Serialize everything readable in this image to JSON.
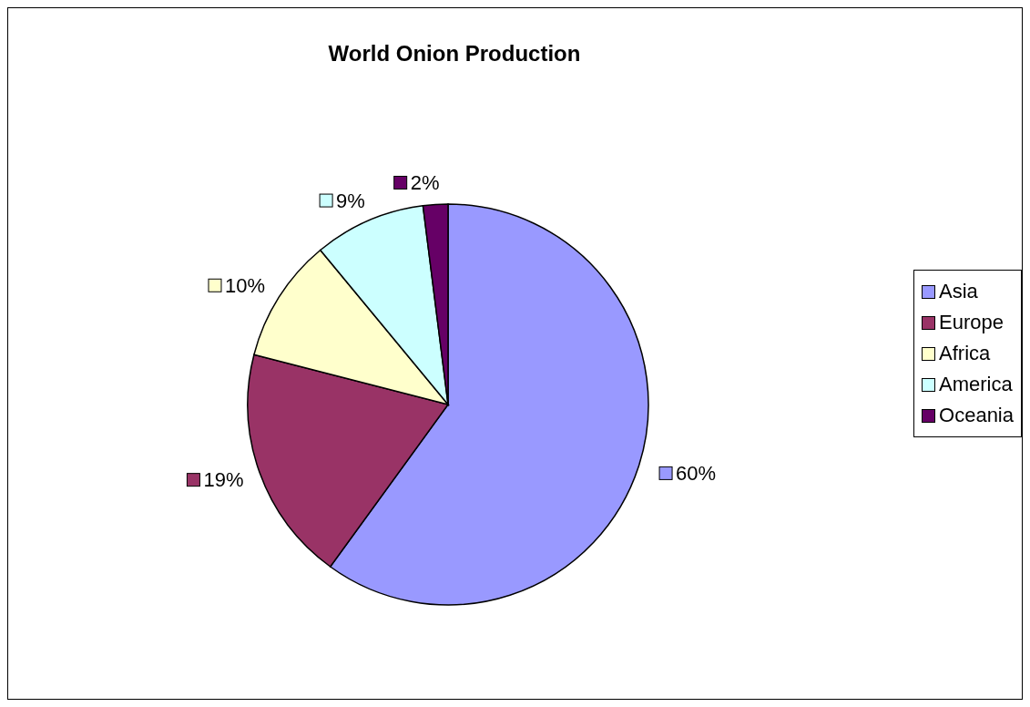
{
  "chart_data": {
    "type": "pie",
    "title": "World Onion Production",
    "categories": [
      "Asia",
      "Europe",
      "Africa",
      "America",
      "Oceania"
    ],
    "values": [
      60,
      19,
      10,
      9,
      2
    ],
    "colors": [
      "#9999ff",
      "#993366",
      "#ffffcc",
      "#ccffff",
      "#660066"
    ],
    "value_labels": [
      "60%",
      "19%",
      "10%",
      "9%",
      "2%"
    ],
    "legend": "right"
  }
}
